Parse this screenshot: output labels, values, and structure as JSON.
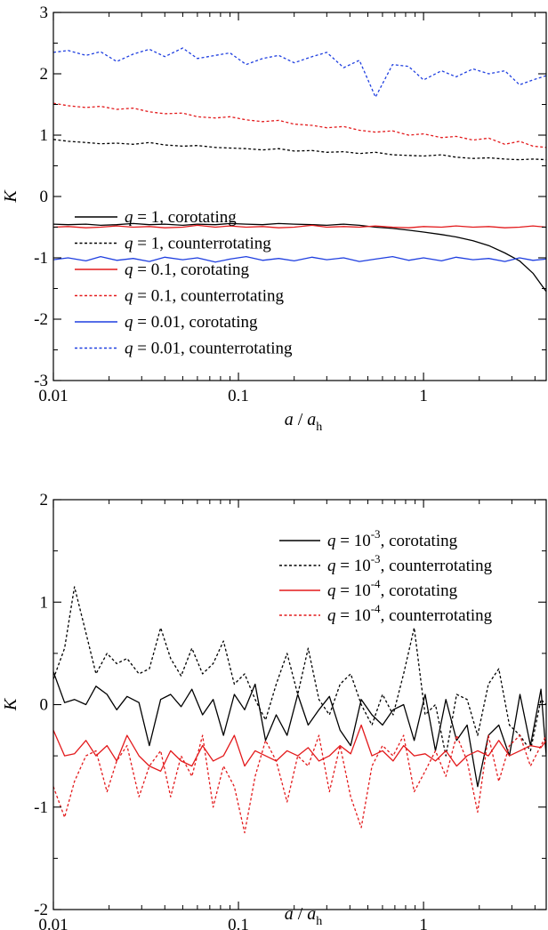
{
  "chart_data": [
    {
      "type": "line",
      "xlabel": {
        "a": "a",
        "slash": " / ",
        "ah": "a",
        "sub": "h"
      },
      "ylabel": "K",
      "xscale": "log",
      "xlim": [
        0.01,
        4.6
      ],
      "ylim": [
        -3,
        3
      ],
      "xticks": [
        {
          "value": 0.01,
          "label": "0.01"
        },
        {
          "value": 0.1,
          "label": "0.1"
        },
        {
          "value": 1,
          "label": "1"
        }
      ],
      "yticks": [
        {
          "value": -3,
          "label": "-3"
        },
        {
          "value": -2,
          "label": "-2"
        },
        {
          "value": -1,
          "label": "-1"
        },
        {
          "value": 0,
          "label": "0"
        },
        {
          "value": 1,
          "label": "1"
        },
        {
          "value": 2,
          "label": "2"
        },
        {
          "value": 3,
          "label": "3"
        }
      ],
      "legend_position": "lower-left",
      "x": [
        0.01,
        0.012,
        0.015,
        0.018,
        0.022,
        0.027,
        0.033,
        0.04,
        0.05,
        0.06,
        0.075,
        0.09,
        0.11,
        0.135,
        0.165,
        0.2,
        0.25,
        0.3,
        0.37,
        0.45,
        0.55,
        0.68,
        0.83,
        1.0,
        1.25,
        1.5,
        1.85,
        2.25,
        2.75,
        3.3,
        3.9,
        4.6
      ],
      "series": [
        {
          "legend": {
            "q": "q",
            "rest": " = 1, corotating"
          },
          "color": "#000000",
          "dash": "solid",
          "values": [
            -0.45,
            -0.46,
            -0.45,
            -0.47,
            -0.46,
            -0.44,
            -0.46,
            -0.45,
            -0.47,
            -0.45,
            -0.46,
            -0.44,
            -0.45,
            -0.46,
            -0.44,
            -0.45,
            -0.46,
            -0.47,
            -0.45,
            -0.47,
            -0.5,
            -0.52,
            -0.55,
            -0.58,
            -0.62,
            -0.66,
            -0.72,
            -0.8,
            -0.92,
            -1.05,
            -1.25,
            -1.55
          ]
        },
        {
          "legend": {
            "q": "q",
            "rest": " = 1, counterrotating"
          },
          "color": "#000000",
          "dash": "dotted",
          "values": [
            0.93,
            0.9,
            0.88,
            0.86,
            0.87,
            0.85,
            0.88,
            0.84,
            0.82,
            0.83,
            0.8,
            0.79,
            0.78,
            0.76,
            0.78,
            0.74,
            0.75,
            0.72,
            0.73,
            0.7,
            0.72,
            0.68,
            0.67,
            0.66,
            0.68,
            0.64,
            0.62,
            0.63,
            0.61,
            0.6,
            0.61,
            0.6
          ]
        },
        {
          "legend": {
            "q": "q",
            "rest": " = 0.1, corotating"
          },
          "color": "#e31a1c",
          "dash": "solid",
          "values": [
            -0.5,
            -0.49,
            -0.51,
            -0.5,
            -0.48,
            -0.5,
            -0.49,
            -0.51,
            -0.5,
            -0.47,
            -0.5,
            -0.48,
            -0.5,
            -0.49,
            -0.51,
            -0.5,
            -0.47,
            -0.5,
            -0.49,
            -0.5,
            -0.48,
            -0.5,
            -0.51,
            -0.49,
            -0.5,
            -0.48,
            -0.5,
            -0.49,
            -0.51,
            -0.5,
            -0.48,
            -0.5
          ]
        },
        {
          "legend": {
            "q": "q",
            "rest": " = 0.1, counterrotating"
          },
          "color": "#e31a1c",
          "dash": "dotted",
          "values": [
            1.52,
            1.48,
            1.45,
            1.47,
            1.42,
            1.44,
            1.38,
            1.35,
            1.36,
            1.3,
            1.28,
            1.3,
            1.25,
            1.22,
            1.24,
            1.18,
            1.16,
            1.12,
            1.14,
            1.08,
            1.05,
            1.07,
            1.0,
            1.02,
            0.96,
            0.98,
            0.92,
            0.95,
            0.85,
            0.9,
            0.82,
            0.8
          ]
        },
        {
          "legend": {
            "q": "q",
            "rest": " = 0.01, corotating"
          },
          "color": "#1f3fe0",
          "dash": "solid",
          "values": [
            -1.03,
            -1.0,
            -1.05,
            -0.98,
            -1.04,
            -1.01,
            -1.06,
            -0.99,
            -1.03,
            -1.0,
            -1.07,
            -1.02,
            -0.98,
            -1.04,
            -1.01,
            -1.05,
            -0.99,
            -1.03,
            -1.0,
            -1.06,
            -1.02,
            -0.98,
            -1.04,
            -1.0,
            -1.05,
            -0.99,
            -1.03,
            -1.01,
            -1.06,
            -1.0,
            -1.04,
            -1.02
          ]
        },
        {
          "legend": {
            "q": "q",
            "rest": " = 0.01, counterrotating"
          },
          "color": "#1f3fe0",
          "dash": "dotted",
          "values": [
            2.35,
            2.38,
            2.3,
            2.36,
            2.2,
            2.32,
            2.4,
            2.28,
            2.42,
            2.25,
            2.3,
            2.34,
            2.15,
            2.25,
            2.3,
            2.18,
            2.28,
            2.35,
            2.1,
            2.22,
            1.62,
            2.15,
            2.12,
            1.9,
            2.05,
            1.95,
            2.08,
            2.0,
            2.05,
            1.82,
            1.9,
            1.97
          ]
        }
      ]
    },
    {
      "type": "line",
      "xlabel": {
        "a": "a",
        "slash": " / ",
        "ah": "a",
        "sub": "h"
      },
      "ylabel": "K",
      "xscale": "log",
      "xlim": [
        0.01,
        4.6
      ],
      "ylim": [
        -2,
        2
      ],
      "xticks": [
        {
          "value": 0.01,
          "label": "0.01"
        },
        {
          "value": 0.1,
          "label": "0.1"
        },
        {
          "value": 1,
          "label": "1"
        }
      ],
      "yticks": [
        {
          "value": -2,
          "label": "-2"
        },
        {
          "value": -1,
          "label": "-1"
        },
        {
          "value": 0,
          "label": "0"
        },
        {
          "value": 1,
          "label": "1"
        },
        {
          "value": 2,
          "label": "2"
        }
      ],
      "legend_position": "top-right",
      "x": [
        0.01,
        0.0115,
        0.013,
        0.015,
        0.017,
        0.0195,
        0.022,
        0.025,
        0.029,
        0.033,
        0.038,
        0.043,
        0.049,
        0.056,
        0.064,
        0.073,
        0.083,
        0.095,
        0.108,
        0.123,
        0.14,
        0.16,
        0.183,
        0.209,
        0.238,
        0.272,
        0.31,
        0.354,
        0.404,
        0.461,
        0.526,
        0.6,
        0.685,
        0.78,
        0.89,
        1.02,
        1.16,
        1.32,
        1.51,
        1.72,
        1.96,
        2.24,
        2.55,
        2.91,
        3.32,
        3.78,
        4.31,
        4.6
      ],
      "series": [
        {
          "legend": {
            "q": "q",
            "base": " = 10",
            "exp": "-3",
            "rest": ", corotating"
          },
          "color": "#000000",
          "dash": "solid",
          "values": [
            0.32,
            0.02,
            0.05,
            0.0,
            0.18,
            0.1,
            -0.05,
            0.08,
            0.02,
            -0.4,
            0.05,
            0.1,
            -0.02,
            0.15,
            -0.1,
            0.05,
            -0.3,
            0.1,
            -0.05,
            0.2,
            -0.35,
            -0.1,
            -0.3,
            0.1,
            -0.2,
            -0.05,
            0.08,
            -0.25,
            -0.4,
            0.05,
            -0.1,
            -0.2,
            -0.05,
            0.0,
            -0.35,
            0.1,
            -0.45,
            0.05,
            -0.35,
            -0.2,
            -0.8,
            -0.3,
            -0.2,
            -0.5,
            0.1,
            -0.4,
            0.15,
            -0.5
          ]
        },
        {
          "legend": {
            "q": "q",
            "base": " = 10",
            "exp": "-3",
            "rest": ", counterrotating"
          },
          "color": "#000000",
          "dash": "dotted",
          "values": [
            0.25,
            0.55,
            1.15,
            0.7,
            0.3,
            0.5,
            0.4,
            0.45,
            0.3,
            0.35,
            0.75,
            0.45,
            0.28,
            0.55,
            0.3,
            0.4,
            0.62,
            0.2,
            0.3,
            0.05,
            -0.15,
            0.2,
            0.5,
            0.1,
            0.55,
            0.05,
            -0.1,
            0.2,
            0.3,
            0.0,
            -0.2,
            0.1,
            -0.1,
            0.3,
            0.75,
            -0.1,
            0.0,
            -0.5,
            0.1,
            0.05,
            -0.3,
            0.2,
            0.35,
            -0.2,
            -0.3,
            -0.45,
            0.05,
            0.0
          ]
        },
        {
          "legend": {
            "q": "q",
            "base": " = 10",
            "exp": "-4",
            "rest": ", corotating"
          },
          "color": "#e31a1c",
          "dash": "solid",
          "values": [
            -0.25,
            -0.5,
            -0.48,
            -0.35,
            -0.5,
            -0.4,
            -0.55,
            -0.3,
            -0.5,
            -0.6,
            -0.65,
            -0.45,
            -0.55,
            -0.6,
            -0.4,
            -0.55,
            -0.5,
            -0.3,
            -0.6,
            -0.45,
            -0.5,
            -0.55,
            -0.45,
            -0.5,
            -0.42,
            -0.55,
            -0.5,
            -0.4,
            -0.48,
            -0.2,
            -0.5,
            -0.45,
            -0.55,
            -0.4,
            -0.5,
            -0.48,
            -0.55,
            -0.45,
            -0.6,
            -0.5,
            -0.45,
            -0.5,
            -0.35,
            -0.5,
            -0.45,
            -0.4,
            -0.42,
            -0.35
          ]
        },
        {
          "legend": {
            "q": "q",
            "base": " = 10",
            "exp": "-4",
            "rest": ", counterrotating"
          },
          "color": "#e31a1c",
          "dash": "dotted",
          "values": [
            -0.8,
            -1.1,
            -0.75,
            -0.5,
            -0.45,
            -0.85,
            -0.55,
            -0.4,
            -0.9,
            -0.6,
            -0.45,
            -0.9,
            -0.5,
            -0.7,
            -0.3,
            -1.0,
            -0.6,
            -0.8,
            -1.25,
            -0.7,
            -0.35,
            -0.55,
            -0.95,
            -0.5,
            -0.6,
            -0.3,
            -0.85,
            -0.4,
            -0.9,
            -1.2,
            -0.6,
            -0.4,
            -0.5,
            -0.3,
            -0.85,
            -0.65,
            -0.45,
            -0.7,
            -0.3,
            -0.55,
            -1.05,
            -0.3,
            -0.75,
            -0.4,
            -0.3,
            -0.6,
            -0.4,
            -0.3
          ]
        }
      ]
    }
  ]
}
